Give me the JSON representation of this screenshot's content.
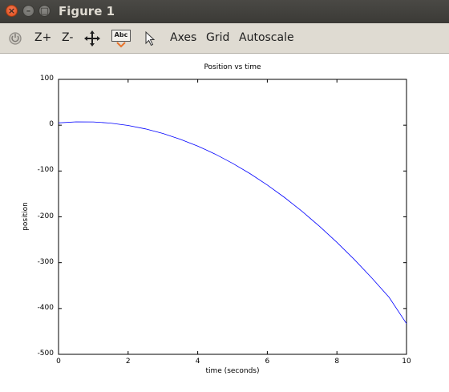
{
  "window": {
    "title": "Figure 1",
    "controls": {
      "close": "×",
      "minimize": "–",
      "maximize": "□"
    }
  },
  "toolbar": {
    "zoom_in_label": "Z+",
    "zoom_out_label": "Z-",
    "text_tool_label": "Abc",
    "axes_label": "Axes",
    "grid_label": "Grid",
    "autoscale_label": "Autoscale",
    "icons": [
      "rotate-icon",
      "pan-icon",
      "text-insert-icon",
      "pointer-icon"
    ]
  },
  "colors": {
    "titlebar": "#3b3a36",
    "toolbar": "#dfdbd2",
    "series": "#0000ff"
  },
  "chart_data": {
    "type": "line",
    "title": "Position vs time",
    "xlabel": "time (seconds)",
    "ylabel": "position",
    "xlim": [
      0,
      10
    ],
    "ylim": [
      -500,
      100
    ],
    "xticks": [
      "0",
      "2",
      "4",
      "6",
      "8",
      "10"
    ],
    "yticks": [
      "100",
      "0",
      "-100",
      "-200",
      "-300",
      "-400",
      "-500"
    ],
    "grid": false,
    "series": [
      {
        "x": [
          0,
          0.5,
          1,
          1.5,
          2,
          2.5,
          3,
          3.5,
          4,
          4.5,
          5,
          5.5,
          6,
          6.5,
          7,
          7.5,
          8,
          8.5,
          9,
          9.5,
          10
        ],
        "y": [
          5,
          7.3,
          7.1,
          4.5,
          -0.6,
          -8.1,
          -18.1,
          -30.6,
          -45.6,
          -63.1,
          -83.1,
          -105.6,
          -130.6,
          -158.1,
          -188.1,
          -220.6,
          -255.6,
          -293.1,
          -333.1,
          -375.6,
          -433
        ]
      }
    ]
  }
}
